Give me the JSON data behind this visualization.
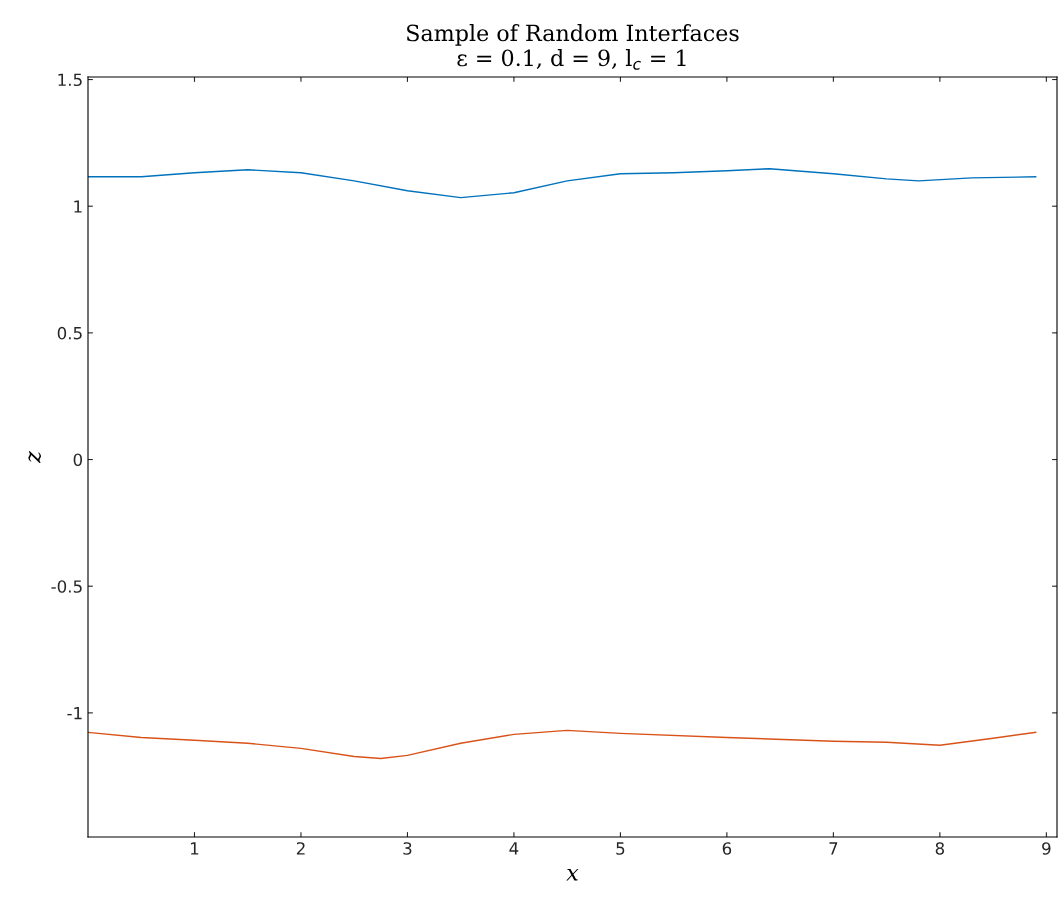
{
  "chart_data": {
    "type": "line",
    "title": "Sample of Random Interfaces\nε = 0.1, d = 9, l$_{c}$ = 1",
    "xlabel": "x",
    "ylabel": "z",
    "x": [
      0,
      0.5,
      1,
      1.5,
      2,
      2.5,
      3,
      3.5,
      4,
      4.5,
      5,
      5.5,
      6,
      6.4,
      7,
      7.5,
      7.8,
      8.3,
      8.9
    ],
    "series": [
      {
        "color": "#0072bd",
        "values": [
          1.116,
          1.116,
          1.132,
          1.144,
          1.132,
          1.1,
          1.061,
          1.034,
          1.053,
          1.1,
          1.128,
          1.132,
          1.14,
          1.148,
          1.128,
          1.108,
          1.1,
          1.112,
          1.116
        ]
      },
      {
        "color": "#d95319",
        "x": [
          0,
          0.5,
          1,
          1.5,
          2,
          2.5,
          2.75,
          3,
          3.5,
          4,
          4.5,
          5,
          6,
          7,
          7.5,
          8,
          8.5,
          8.9
        ],
        "values": [
          -1.077,
          -1.097,
          -1.108,
          -1.12,
          -1.14,
          -1.172,
          -1.18,
          -1.168,
          -1.12,
          -1.085,
          -1.069,
          -1.081,
          -1.097,
          -1.112,
          -1.116,
          -1.128,
          -1.1,
          -1.077
        ]
      }
    ],
    "xlim": [
      0,
      9.1
    ],
    "xticks": [
      1,
      2,
      3,
      4,
      5,
      6,
      7,
      8,
      9
    ],
    "ylim": [
      -1.49,
      1.51
    ],
    "yticks": [
      {
        "value": -1,
        "label": "-1"
      },
      {
        "value": -0.5,
        "label": "-0.5"
      },
      0,
      0.5,
      1,
      1.5
    ],
    "grid": false,
    "legend": false
  }
}
